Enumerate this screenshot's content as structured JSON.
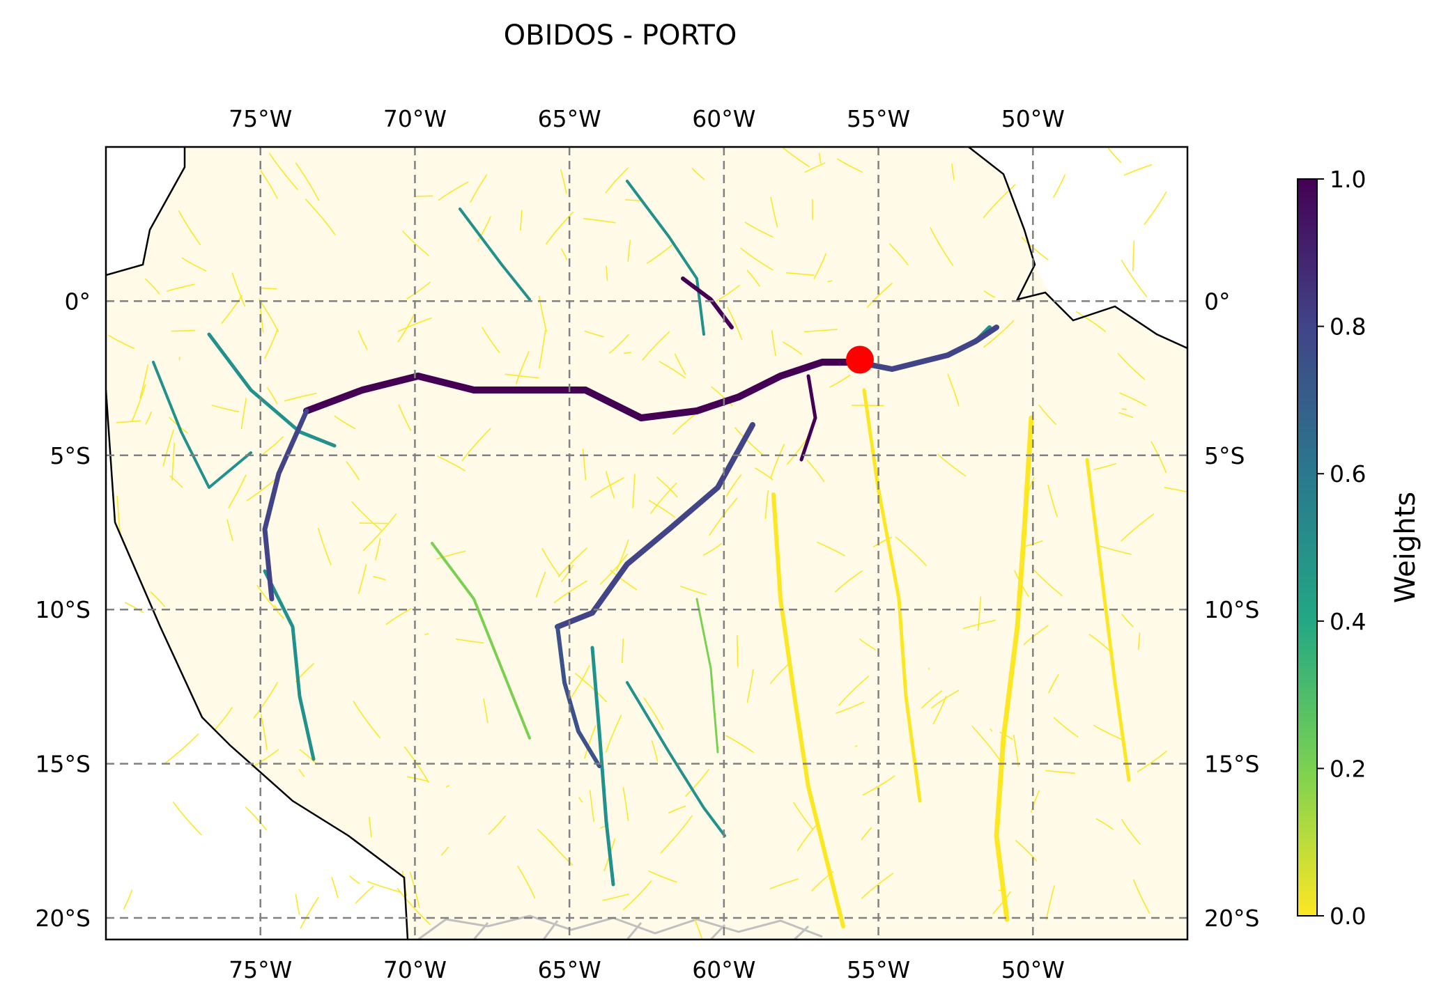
{
  "title": "OBIDOS - PORTO",
  "map": {
    "lon_range": [
      -80,
      -45
    ],
    "lat_range": [
      -20.7,
      5
    ],
    "lon_ticks": [
      {
        "value": -75,
        "label": "75°W"
      },
      {
        "value": -70,
        "label": "70°W"
      },
      {
        "value": -65,
        "label": "65°W"
      },
      {
        "value": -60,
        "label": "60°W"
      },
      {
        "value": -55,
        "label": "55°W"
      },
      {
        "value": -50,
        "label": "50°W"
      }
    ],
    "lat_ticks": [
      {
        "value": 0,
        "label": "0°"
      },
      {
        "value": -5,
        "label": "5°S"
      },
      {
        "value": -10,
        "label": "10°S"
      },
      {
        "value": -15,
        "label": "15°S"
      },
      {
        "value": -20,
        "label": "20°S"
      }
    ],
    "gridlines": true,
    "gauge_station": {
      "lon": -55.6,
      "lat": -1.9,
      "color": "#ff0000"
    },
    "colors": {
      "river_low": "#fde725",
      "river_mid": "#21918c",
      "river_high": "#440154",
      "outside_domain": "#c0c0c0",
      "coastline": "#000000",
      "gridline": "#808080"
    }
  },
  "colorbar": {
    "label": "Weights",
    "min": 0.0,
    "max": 1.0,
    "colormap": "viridis_r",
    "ticks": [
      {
        "value": 0.0,
        "label": "0.0"
      },
      {
        "value": 0.2,
        "label": "0.2"
      },
      {
        "value": 0.4,
        "label": "0.4"
      },
      {
        "value": 0.6,
        "label": "0.6"
      },
      {
        "value": 0.8,
        "label": "0.8"
      },
      {
        "value": 1.0,
        "label": "1.0"
      }
    ]
  }
}
